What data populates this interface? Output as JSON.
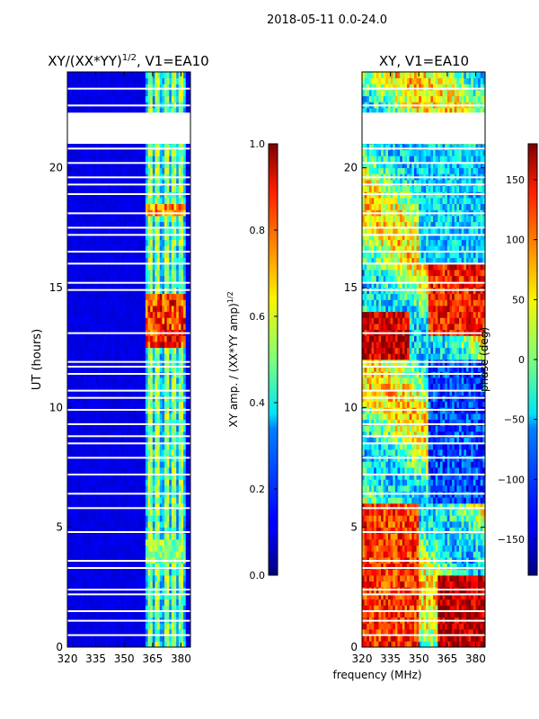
{
  "figure": {
    "suptitle": "2018-05-11 0.0-24.0",
    "xlabel_shared": "frequency (MHz)",
    "colormap": "jet"
  },
  "chart_data": [
    {
      "type": "heatmap",
      "name": "amplitude",
      "title_main": "XY/(XX*YY)",
      "title_sup": "1/2",
      "title_rest": ", V1=EA10",
      "ylabel": "UT (hours)",
      "xlim": [
        320,
        385
      ],
      "ylim": [
        0,
        24
      ],
      "xticks": [
        320,
        335,
        350,
        365,
        380
      ],
      "yticks": [
        0,
        5,
        10,
        15,
        20
      ],
      "colorbar": {
        "label_main": "XY amp. / (XX*YY amp)",
        "label_sup": "1/2",
        "range": [
          0.0,
          1.0
        ],
        "ticks": [
          "0.0",
          "0.2",
          "0.4",
          "0.6",
          "0.8",
          "1.0"
        ],
        "tick_values": [
          0.0,
          0.2,
          0.4,
          0.6,
          0.8,
          1.0
        ]
      },
      "background_value": 0.08,
      "bright_band_mhz": [
        361,
        382
      ],
      "bright_columns_mhz": [
        364,
        368,
        372,
        376,
        380
      ],
      "strong_patches": [
        {
          "ut": [
            12.6,
            14.8
          ],
          "mhz": [
            361,
            382
          ],
          "value": 0.9
        },
        {
          "ut": [
            17.9,
            18.6
          ],
          "mhz": [
            361,
            382
          ],
          "value": 0.8
        },
        {
          "ut": [
            3.6,
            4.6
          ],
          "mhz": [
            361,
            382
          ],
          "value": 0.55
        }
      ],
      "blank_ut_ranges": [
        [
          21.0,
          22.3
        ]
      ],
      "flagged_ut_lines": [
        0.5,
        1.1,
        1.5,
        2.2,
        2.4,
        3.3,
        3.6,
        4.8,
        5.8,
        6.4,
        7.2,
        7.9,
        8.5,
        8.8,
        9.3,
        9.9,
        10.4,
        10.7,
        11.4,
        11.7,
        11.9,
        13.1,
        14.9,
        15.2,
        16.0,
        16.5,
        17.2,
        17.5,
        18.1,
        18.9,
        19.3,
        19.6,
        20.2,
        20.8,
        22.6,
        23.3
      ]
    },
    {
      "type": "heatmap",
      "name": "phase",
      "title": "XY, V1=EA10",
      "xlim": [
        320,
        385
      ],
      "ylim": [
        0,
        24
      ],
      "xticks": [
        320,
        335,
        350,
        365,
        380
      ],
      "yticks": [
        0,
        5,
        10,
        15,
        20
      ],
      "colorbar": {
        "label": "phase (deg)",
        "range": [
          -180,
          180
        ],
        "ticks": [
          "150",
          "100",
          "50",
          "0",
          "−50",
          "−100",
          "−150"
        ],
        "tick_values": [
          150,
          100,
          50,
          0,
          -50,
          -100,
          -150
        ]
      },
      "patterns": [
        {
          "ut": [
            0,
            6
          ],
          "mhz": [
            320,
            350
          ],
          "value": 120
        },
        {
          "ut": [
            0,
            3
          ],
          "mhz": [
            360,
            385
          ],
          "value": 160
        },
        {
          "ut": [
            6,
            12
          ],
          "mhz": [
            355,
            385
          ],
          "value": -110
        },
        {
          "ut": [
            12,
            14
          ],
          "mhz": [
            320,
            345
          ],
          "value": 150
        },
        {
          "ut": [
            13,
            16
          ],
          "mhz": [
            355,
            385
          ],
          "value": 130
        },
        {
          "ut": [
            16,
            21
          ],
          "mhz": [
            350,
            385
          ],
          "value": -60
        }
      ],
      "blank_ut_ranges": [
        [
          21.0,
          22.3
        ]
      ],
      "flagged_ut_lines": [
        0.5,
        1.1,
        1.5,
        2.2,
        2.4,
        3.3,
        3.6,
        4.8,
        5.8,
        6.4,
        7.2,
        7.9,
        8.5,
        8.8,
        9.3,
        9.9,
        10.4,
        10.7,
        11.4,
        11.7,
        11.9,
        13.1,
        14.9,
        15.2,
        16.0,
        16.5,
        17.2,
        17.5,
        18.1,
        18.9,
        19.3,
        19.6,
        20.2,
        20.8,
        22.6,
        23.3
      ]
    }
  ]
}
